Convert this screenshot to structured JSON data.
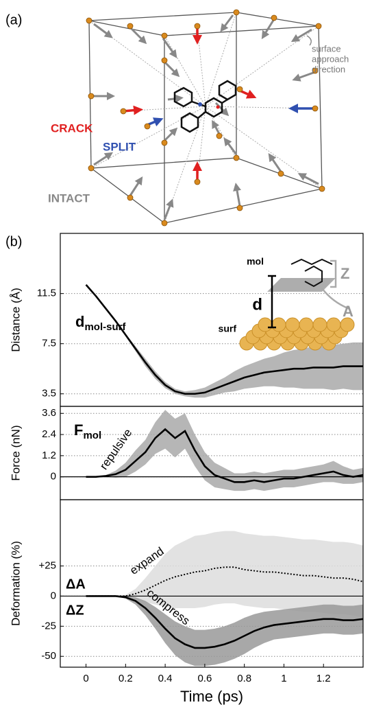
{
  "panel_a": {
    "label": "(a)",
    "crack": "CRACK",
    "split": "SPLIT",
    "intact": "INTACT",
    "direction_label": [
      "surface",
      "approach",
      "direction"
    ]
  },
  "panel_b_label": "(b)",
  "chart_data": [
    {
      "type": "line",
      "ylabel": "Distance (Å)",
      "xlim": [
        -0.13,
        1.4
      ],
      "ylim": [
        2.5,
        16.3
      ],
      "yticks": [
        3.5,
        7.5,
        11.5
      ],
      "grid": true,
      "inset": {
        "mol": "mol",
        "surf": "surf",
        "d": "d",
        "z": "Z",
        "a": "A"
      },
      "x": [
        0,
        0.05,
        0.1,
        0.15,
        0.2,
        0.25,
        0.3,
        0.35,
        0.4,
        0.45,
        0.5,
        0.55,
        0.6,
        0.65,
        0.7,
        0.75,
        0.8,
        0.85,
        0.9,
        0.95,
        1.0,
        1.05,
        1.1,
        1.15,
        1.2,
        1.25,
        1.3,
        1.35,
        1.4
      ],
      "series": [
        {
          "label": "d",
          "label_sub": "mol-surf",
          "color": "#000000",
          "band_color": "#a9a9a9",
          "values": [
            12.2,
            11.3,
            10.3,
            9.3,
            8.2,
            7.1,
            6.0,
            5.0,
            4.2,
            3.7,
            3.5,
            3.5,
            3.6,
            3.9,
            4.2,
            4.5,
            4.8,
            5.0,
            5.2,
            5.3,
            5.4,
            5.5,
            5.5,
            5.6,
            5.6,
            5.6,
            5.7,
            5.7,
            5.7
          ],
          "error": [
            0,
            0,
            0,
            0.05,
            0.1,
            0.2,
            0.3,
            0.3,
            0.25,
            0.2,
            0.2,
            0.3,
            0.4,
            0.5,
            0.6,
            0.8,
            0.9,
            1.0,
            1.1,
            1.2,
            1.4,
            1.5,
            1.6,
            1.7,
            1.7,
            1.8,
            1.8,
            1.9,
            1.9
          ]
        }
      ]
    },
    {
      "type": "line",
      "ylabel": "Force (nN)",
      "xlim": [
        -0.13,
        1.4
      ],
      "ylim": [
        -1.3,
        4.0
      ],
      "yticks": [
        0,
        1.2,
        2.4,
        3.6
      ],
      "grid": true,
      "zero_line": true,
      "annotations": [
        "repulsive"
      ],
      "x": [
        0,
        0.05,
        0.1,
        0.15,
        0.2,
        0.25,
        0.3,
        0.35,
        0.4,
        0.45,
        0.5,
        0.55,
        0.6,
        0.65,
        0.7,
        0.75,
        0.8,
        0.85,
        0.9,
        0.95,
        1.0,
        1.05,
        1.1,
        1.15,
        1.2,
        1.25,
        1.3,
        1.35,
        1.4
      ],
      "series": [
        {
          "label": "F",
          "label_sub": "mol",
          "color": "#000000",
          "band_color": "#a9a9a9",
          "values": [
            0,
            0,
            0.05,
            0.15,
            0.4,
            0.9,
            1.4,
            2.2,
            2.7,
            2.2,
            2.6,
            1.5,
            0.6,
            0.1,
            -0.1,
            -0.3,
            -0.3,
            -0.2,
            -0.3,
            -0.2,
            -0.1,
            -0.1,
            0,
            0.1,
            0.2,
            0.3,
            0.1,
            0,
            0.1
          ],
          "error": [
            0,
            0,
            0.05,
            0.2,
            0.4,
            0.6,
            0.7,
            0.9,
            1.1,
            1.1,
            1.0,
            0.9,
            0.8,
            0.7,
            0.6,
            0.5,
            0.5,
            0.5,
            0.5,
            0.5,
            0.5,
            0.5,
            0.5,
            0.5,
            0.5,
            0.6,
            0.5,
            0.4,
            0.4
          ]
        }
      ]
    },
    {
      "type": "line",
      "ylabel": "Deformation (%)",
      "xlabel": "Time (ps)",
      "xlim": [
        -0.13,
        1.4
      ],
      "ylim": [
        -59,
        80
      ],
      "yticks": [
        {
          "value": 25,
          "label": "+25"
        },
        0,
        -25,
        -50
      ],
      "xticks": [
        0,
        0.2,
        0.4,
        0.6,
        0.8,
        1.0,
        1.2
      ],
      "grid": true,
      "zero_line": true,
      "annotations": [
        "expand",
        "compress"
      ],
      "x": [
        0,
        0.05,
        0.1,
        0.15,
        0.2,
        0.25,
        0.3,
        0.35,
        0.4,
        0.45,
        0.5,
        0.55,
        0.6,
        0.65,
        0.7,
        0.75,
        0.8,
        0.85,
        0.9,
        0.95,
        1.0,
        1.05,
        1.1,
        1.15,
        1.2,
        1.25,
        1.3,
        1.35,
        1.4
      ],
      "series": [
        {
          "name": "ΔA",
          "color": "#000000",
          "dash": true,
          "band_color": "#dddddd",
          "values": [
            0,
            0,
            0,
            0,
            0,
            2,
            5,
            9,
            13,
            16,
            18,
            20,
            21,
            23,
            24,
            24,
            22,
            21,
            20,
            20,
            19,
            18,
            17,
            17,
            16,
            15,
            15,
            14,
            12
          ],
          "error": [
            0,
            0,
            0,
            0,
            1,
            4,
            10,
            16,
            22,
            26,
            28,
            30,
            30,
            30,
            30,
            30,
            30,
            30,
            30,
            30,
            30,
            30,
            30,
            30,
            30,
            30,
            30,
            30,
            30
          ]
        },
        {
          "name": "ΔZ",
          "color": "#000000",
          "band_color": "#999999",
          "values": [
            0,
            0,
            0,
            0,
            -1,
            -4,
            -10,
            -18,
            -27,
            -35,
            -40,
            -43,
            -43,
            -42,
            -40,
            -37,
            -33,
            -29,
            -26,
            -24,
            -23,
            -22,
            -21,
            -20,
            -19,
            -19,
            -20,
            -20,
            -19
          ],
          "error": [
            0,
            0,
            0,
            0,
            1,
            3,
            6,
            9,
            12,
            14,
            15,
            15,
            15,
            15,
            15,
            15,
            15,
            14,
            13,
            12,
            12,
            12,
            12,
            12,
            12,
            12,
            12,
            12,
            12
          ]
        }
      ]
    }
  ]
}
